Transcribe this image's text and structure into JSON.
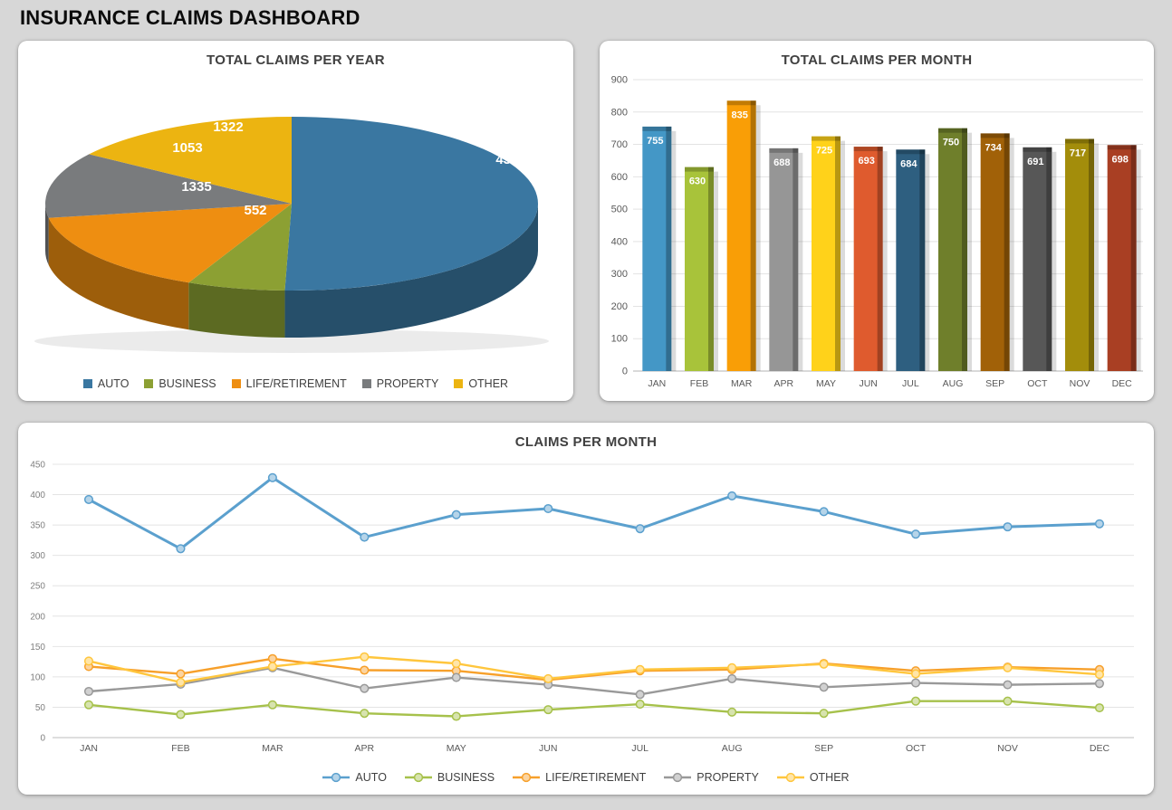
{
  "page": {
    "title": "INSURANCE CLAIMS DASHBOARD",
    "background": "#d7d7d7"
  },
  "chart_data": [
    {
      "id": "claims_per_year",
      "type": "pie",
      "style": "3d",
      "title": "TOTAL CLAIMS PER YEAR",
      "labels": [
        "AUTO",
        "BUSINESS",
        "LIFE/RETIREMENT",
        "PROPERTY",
        "OTHER"
      ],
      "values": [
        4338,
        552,
        1335,
        1053,
        1322
      ],
      "colors": [
        "#3A77A1",
        "#8CA033",
        "#EE8E11",
        "#797B7D",
        "#ECB411"
      ],
      "legend_position": "bottom"
    },
    {
      "id": "claims_per_month_bar",
      "type": "bar",
      "title": "TOTAL CLAIMS PER MONTH",
      "categories": [
        "JAN",
        "FEB",
        "MAR",
        "APR",
        "MAY",
        "JUN",
        "JUL",
        "AUG",
        "SEP",
        "OCT",
        "NOV",
        "DEC"
      ],
      "values": [
        755,
        630,
        835,
        688,
        725,
        693,
        684,
        750,
        734,
        691,
        717,
        698
      ],
      "colors": [
        "#4497C6",
        "#A8C33A",
        "#F99E06",
        "#969696",
        "#FFD21A",
        "#DF5B2E",
        "#2E5F80",
        "#6F7F2B",
        "#A16108",
        "#575757",
        "#A38D0B",
        "#A93F23"
      ],
      "ylim": [
        0,
        900
      ],
      "ytick_step": 100,
      "grid": true,
      "value_labels": "inside-top"
    },
    {
      "id": "claims_per_month_line",
      "type": "line",
      "title": "CLAIMS PER MONTH",
      "categories": [
        "JAN",
        "FEB",
        "MAR",
        "APR",
        "MAY",
        "JUN",
        "JUL",
        "AUG",
        "SEP",
        "OCT",
        "NOV",
        "DEC"
      ],
      "series": [
        {
          "name": "AUTO",
          "color": "#5BA0CE",
          "values": [
            392,
            311,
            428,
            330,
            367,
            377,
            344,
            398,
            372,
            335,
            347,
            352
          ]
        },
        {
          "name": "BUSINESS",
          "color": "#A6C14B",
          "values": [
            54,
            38,
            54,
            40,
            35,
            46,
            55,
            42,
            40,
            60,
            60,
            49
          ]
        },
        {
          "name": "LIFE/RETIREMENT",
          "color": "#F7A02B",
          "values": [
            117,
            105,
            130,
            111,
            110,
            95,
            110,
            112,
            122,
            110,
            116,
            112
          ]
        },
        {
          "name": "PROPERTY",
          "color": "#999999",
          "values": [
            76,
            88,
            115,
            81,
            99,
            87,
            71,
            97,
            83,
            90,
            87,
            89
          ]
        },
        {
          "name": "OTHER",
          "color": "#FFC63D",
          "values": [
            126,
            91,
            117,
            133,
            122,
            97,
            112,
            115,
            121,
            105,
            115,
            104
          ]
        }
      ],
      "ylim": [
        0,
        450
      ],
      "ytick_step": 50,
      "grid": true,
      "legend_position": "bottom"
    }
  ]
}
